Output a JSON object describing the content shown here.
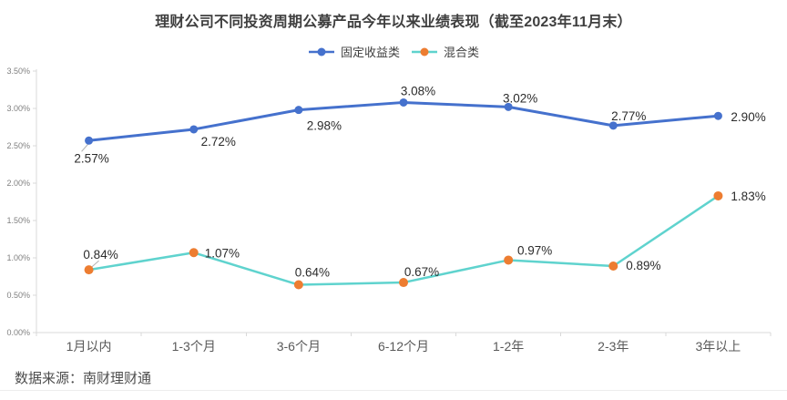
{
  "title": "理财公司不同投资周期公募产品今年以来业绩表现（截至2023年11月末）",
  "source": "数据来源：南财理财通",
  "legend": {
    "items": [
      {
        "name": "固定收益类",
        "line_color": "#4571cd",
        "marker_color": "#4571cd"
      },
      {
        "name": "混合类",
        "line_color": "#5fd3ce",
        "marker_color": "#ed7d31"
      }
    ]
  },
  "chart_data": {
    "type": "line",
    "title": "理财公司不同投资周期公募产品今年以来业绩表现（截至2023年11月末）",
    "categories": [
      "1月以内",
      "1-3个月",
      "3-6个月",
      "6-12个月",
      "1-2年",
      "2-3年",
      "3年以上"
    ],
    "series": [
      {
        "name": "固定收益类",
        "values": [
          2.57,
          2.72,
          2.98,
          3.08,
          3.02,
          2.77,
          2.9
        ],
        "labels": [
          "2.57%",
          "2.72%",
          "2.98%",
          "3.08%",
          "3.02%",
          "2.77%",
          "2.90%"
        ],
        "line_color": "#4571cd",
        "marker_color": "#4571cd",
        "line_width": 3,
        "marker_radius": 4.5,
        "label_offsets": [
          {
            "dx": 3,
            "dy": 24,
            "anchor": "middle",
            "leader": [
              -1,
              4,
              -8,
              12
            ]
          },
          {
            "dx": 27,
            "dy": 18,
            "anchor": "middle"
          },
          {
            "dx": 28,
            "dy": 22,
            "anchor": "middle"
          },
          {
            "dx": 16,
            "dy": -8,
            "anchor": "middle"
          },
          {
            "dx": 13,
            "dy": -5,
            "anchor": "middle"
          },
          {
            "dx": 17,
            "dy": -6,
            "anchor": "middle"
          },
          {
            "dx": 14,
            "dy": 6,
            "anchor": "start"
          }
        ]
      },
      {
        "name": "混合类",
        "values": [
          0.84,
          1.07,
          0.64,
          0.67,
          0.97,
          0.89,
          1.83
        ],
        "labels": [
          "0.84%",
          "1.07%",
          "0.64%",
          "0.67%",
          "0.97%",
          "0.89%",
          "1.83%"
        ],
        "line_color": "#5fd3ce",
        "marker_color": "#ed7d31",
        "line_width": 2.5,
        "marker_radius": 5,
        "label_offsets": [
          {
            "dx": 13,
            "dy": -12,
            "anchor": "middle",
            "leader": [
              3,
              -3,
              11,
              -10
            ]
          },
          {
            "dx": 12,
            "dy": 5,
            "anchor": "start"
          },
          {
            "dx": 15,
            "dy": -9,
            "anchor": "middle"
          },
          {
            "dx": 20,
            "dy": -7,
            "anchor": "middle"
          },
          {
            "dx": 29,
            "dy": -6,
            "anchor": "middle"
          },
          {
            "dx": 14,
            "dy": 4,
            "anchor": "start"
          },
          {
            "dx": 14,
            "dy": 5,
            "anchor": "start"
          }
        ]
      }
    ],
    "ylim": [
      0,
      3.5
    ],
    "ytick_labels": [
      "0.00%",
      "0.50%",
      "1.00%",
      "1.50%",
      "2.00%",
      "2.50%",
      "3.00%",
      "3.50%"
    ],
    "grid": false,
    "legend_position": "top",
    "axis_color": "#d9d9d9",
    "leader_color": "#b3b3b3",
    "data_label_color": "#2b2b2b",
    "ytick_label_color": "#808080",
    "xtick_label_color": "#595959"
  }
}
